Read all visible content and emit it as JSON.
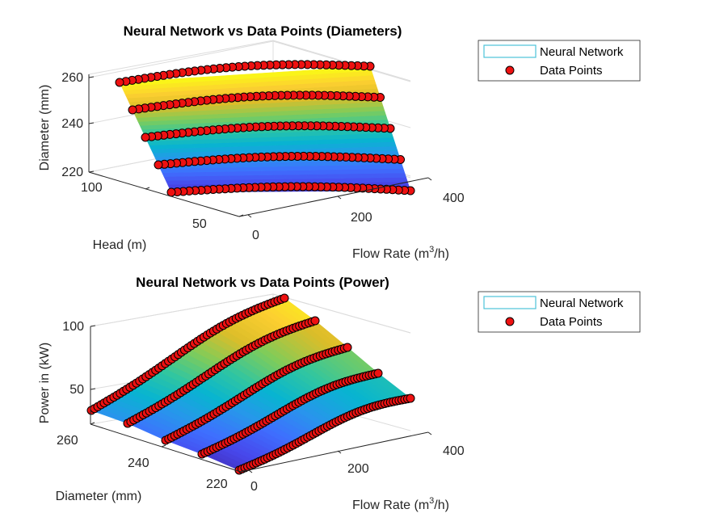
{
  "chart_data": [
    {
      "type": "surface3d",
      "title": "Neural Network vs Data Points (Diameters)",
      "xlabel": "Flow Rate (m",
      "xlabel_sup": "3",
      "xlabel_tail": "/h)",
      "ylabel": "Head (m)",
      "zlabel": "Diameter (mm)",
      "xlim": [
        0,
        420
      ],
      "ylim": [
        20,
        110
      ],
      "zlim": [
        215,
        265
      ],
      "xticks": [
        "0",
        "200",
        "400"
      ],
      "yticks": [
        "50",
        "100"
      ],
      "zticks": [
        "220",
        "240",
        "260"
      ],
      "legend": [
        "Neural Network",
        "Data Points"
      ],
      "legend_location": "top-right",
      "series": [
        {
          "name": "Data Points",
          "curve_diameter_mm": 260,
          "flow_range": [
            0,
            420
          ]
        },
        {
          "name": "Data Points",
          "curve_diameter_mm": 250,
          "flow_range": [
            0,
            420
          ]
        },
        {
          "name": "Data Points",
          "curve_diameter_mm": 240,
          "flow_range": [
            0,
            420
          ]
        },
        {
          "name": "Data Points",
          "curve_diameter_mm": 230,
          "flow_range": [
            0,
            420
          ]
        },
        {
          "name": "Data Points",
          "curve_diameter_mm": 220,
          "flow_range": [
            0,
            420
          ]
        }
      ]
    },
    {
      "type": "surface3d",
      "title": "Neural Network vs Data Points (Power)",
      "xlabel": "Flow Rate (m",
      "xlabel_sup": "3",
      "xlabel_tail": "/h)",
      "ylabel": "Diameter (mm)",
      "zlabel": "Power in (kW)",
      "xlim": [
        0,
        420
      ],
      "ylim": [
        215,
        265
      ],
      "zlim": [
        30,
        120
      ],
      "xticks": [
        "0",
        "200",
        "400"
      ],
      "yticks": [
        "220",
        "240",
        "260"
      ],
      "zticks": [
        "50",
        "100"
      ],
      "legend": [
        "Neural Network",
        "Data Points"
      ],
      "legend_location": "top-right",
      "series": [
        {
          "name": "Data Points",
          "diameter_mm": 260,
          "power_kw_start": 38,
          "power_kw_end": 118
        },
        {
          "name": "Data Points",
          "diameter_mm": 250,
          "power_kw_start": 36,
          "power_kw_end": 105
        },
        {
          "name": "Data Points",
          "diameter_mm": 240,
          "power_kw_start": 34,
          "power_kw_end": 92
        },
        {
          "name": "Data Points",
          "diameter_mm": 230,
          "power_kw_start": 32,
          "power_kw_end": 78
        },
        {
          "name": "Data Points",
          "diameter_mm": 220,
          "power_kw_start": 30,
          "power_kw_end": 62
        }
      ]
    }
  ]
}
